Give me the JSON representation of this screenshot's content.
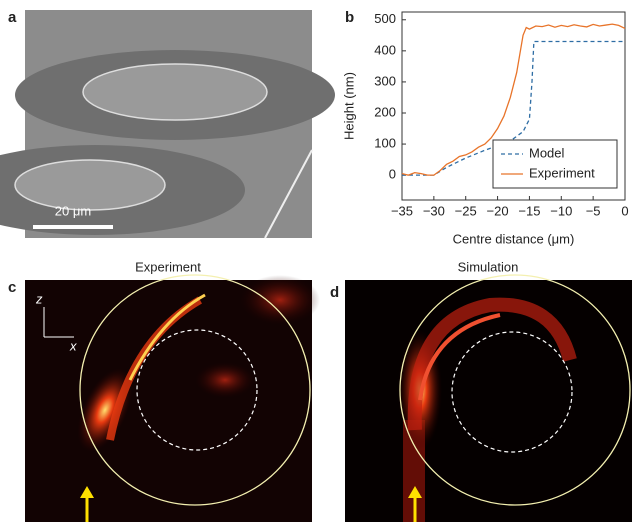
{
  "panels": {
    "a": {
      "label": "a",
      "scale_bar": "20 μm"
    },
    "c": {
      "label": "c",
      "title": "Experiment",
      "axis_z": "z",
      "axis_x": "x"
    },
    "d": {
      "label": "d",
      "title": "Simulation"
    }
  },
  "chart_data": {
    "type": "line",
    "label": "b",
    "xlabel": "Centre distance (μm)",
    "ylabel": "Height (nm)",
    "xlim": [
      -35,
      0
    ],
    "ylim": [
      -80,
      525
    ],
    "xticks": [
      {
        "value": -35,
        "label": "−35"
      },
      {
        "value": -30,
        "label": "−30"
      },
      {
        "value": -25,
        "label": "−25"
      },
      {
        "value": -20,
        "label": "−20"
      },
      {
        "value": -15,
        "label": "−15"
      },
      {
        "value": -10,
        "label": "−10"
      },
      {
        "value": -5,
        "label": "−5"
      },
      0
    ],
    "yticks": [
      0,
      100,
      200,
      300,
      400,
      500
    ],
    "legend": "lower right",
    "series": [
      {
        "name": "Model",
        "color": "#2e6da4",
        "dash": true,
        "x": [
          -35,
          -30,
          -28,
          -25,
          -22,
          -20,
          -18,
          -16,
          -15,
          -14.6,
          -14.3,
          0
        ],
        "values": [
          0,
          0,
          25,
          55,
          80,
          95,
          110,
          140,
          180,
          300,
          430,
          430
        ]
      },
      {
        "name": "Experiment",
        "color": "#e8742a",
        "dash": false,
        "x": [
          -35,
          -34,
          -33,
          -32,
          -31,
          -30,
          -29,
          -28,
          -27,
          -26,
          -25,
          -24,
          -23,
          -22,
          -21,
          -20,
          -19,
          -18,
          -17,
          -16.5,
          -16,
          -15.5,
          -15,
          -14,
          -13,
          -12,
          -11,
          -10,
          -9,
          -8,
          -7,
          -6,
          -5,
          -4,
          -3,
          -2,
          -1,
          0
        ],
        "values": [
          5,
          0,
          8,
          5,
          0,
          0,
          15,
          35,
          45,
          60,
          65,
          75,
          90,
          100,
          120,
          150,
          190,
          250,
          330,
          390,
          450,
          475,
          470,
          480,
          478,
          483,
          476,
          482,
          478,
          484,
          480,
          477,
          485,
          480,
          483,
          486,
          482,
          472
        ]
      }
    ]
  }
}
